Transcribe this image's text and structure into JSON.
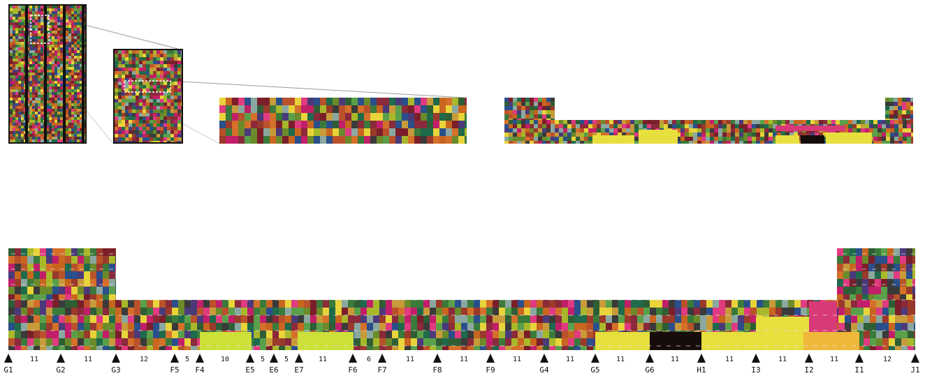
{
  "markers": [
    {
      "label": "G1"
    },
    {
      "label": "G2"
    },
    {
      "label": "G3"
    },
    {
      "label": "F5"
    },
    {
      "label": "F4"
    },
    {
      "label": "E5"
    },
    {
      "label": "E6"
    },
    {
      "label": "E7"
    },
    {
      "label": "F6"
    },
    {
      "label": "F7"
    },
    {
      "label": "F8"
    },
    {
      "label": "F9"
    },
    {
      "label": "G4"
    },
    {
      "label": "G5"
    },
    {
      "label": "G6"
    },
    {
      "label": "H1"
    },
    {
      "label": "I3"
    },
    {
      "label": "I2"
    },
    {
      "label": "I1"
    },
    {
      "label": "J1"
    }
  ],
  "segment_counts": [
    "11",
    "11",
    "12",
    "5",
    "10",
    "5",
    "5",
    "11",
    "6",
    "11",
    "11",
    "11",
    "11",
    "11",
    "11",
    "11",
    "11",
    "11",
    "12"
  ],
  "palette": [
    "#b9522a",
    "#c8651f",
    "#8a2a3a",
    "#3a7a3a",
    "#2f5e35",
    "#c21f6a",
    "#e03a80",
    "#6b8a2a",
    "#a8b82a",
    "#4b3a7a",
    "#2a4f8a",
    "#9a3a2a",
    "#d4702a",
    "#5aa04a",
    "#1f6a4a",
    "#7a1f2a",
    "#c89a3a",
    "#e8d33a",
    "#3a3a3a",
    "#8aa8a0"
  ],
  "highlight_colors": {
    "yellow": "#e7df3e",
    "black": "#160d0b",
    "orange": "#f0b83a",
    "lime": "#cde03a",
    "pink": "#d83a78"
  }
}
